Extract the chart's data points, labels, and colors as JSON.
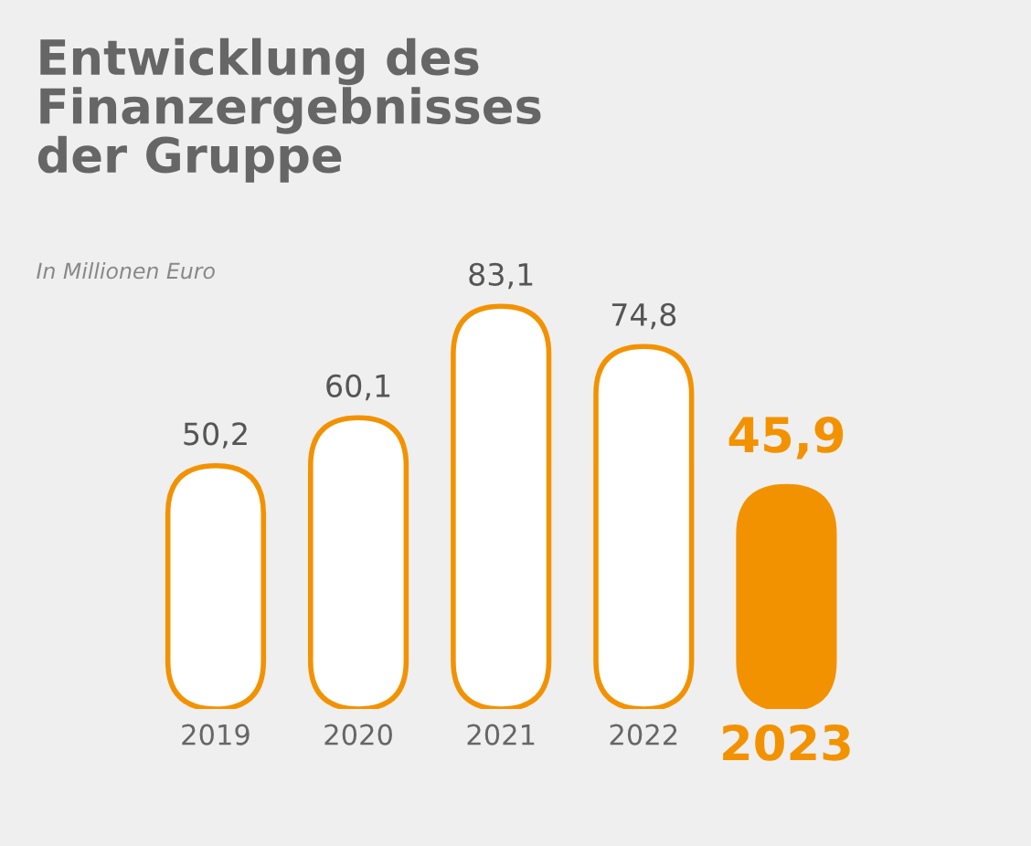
{
  "chart_data": {
    "type": "bar",
    "title": "Entwicklung des\nFinanzergebnisses\nder Gruppe",
    "subtitle": "In Millionen Euro",
    "categories": [
      "2019",
      "2020",
      "2021",
      "2022",
      "2023"
    ],
    "values": [
      50.2,
      60.1,
      83.1,
      74.8,
      45.9
    ],
    "value_labels": [
      "50,2",
      "60,1",
      "83,1",
      "74,8",
      "45,9"
    ],
    "color": "#f39200",
    "colors": [
      "#ffffff",
      "#ffffff",
      "#ffffff",
      "#ffffff",
      "#f39200"
    ]
  }
}
